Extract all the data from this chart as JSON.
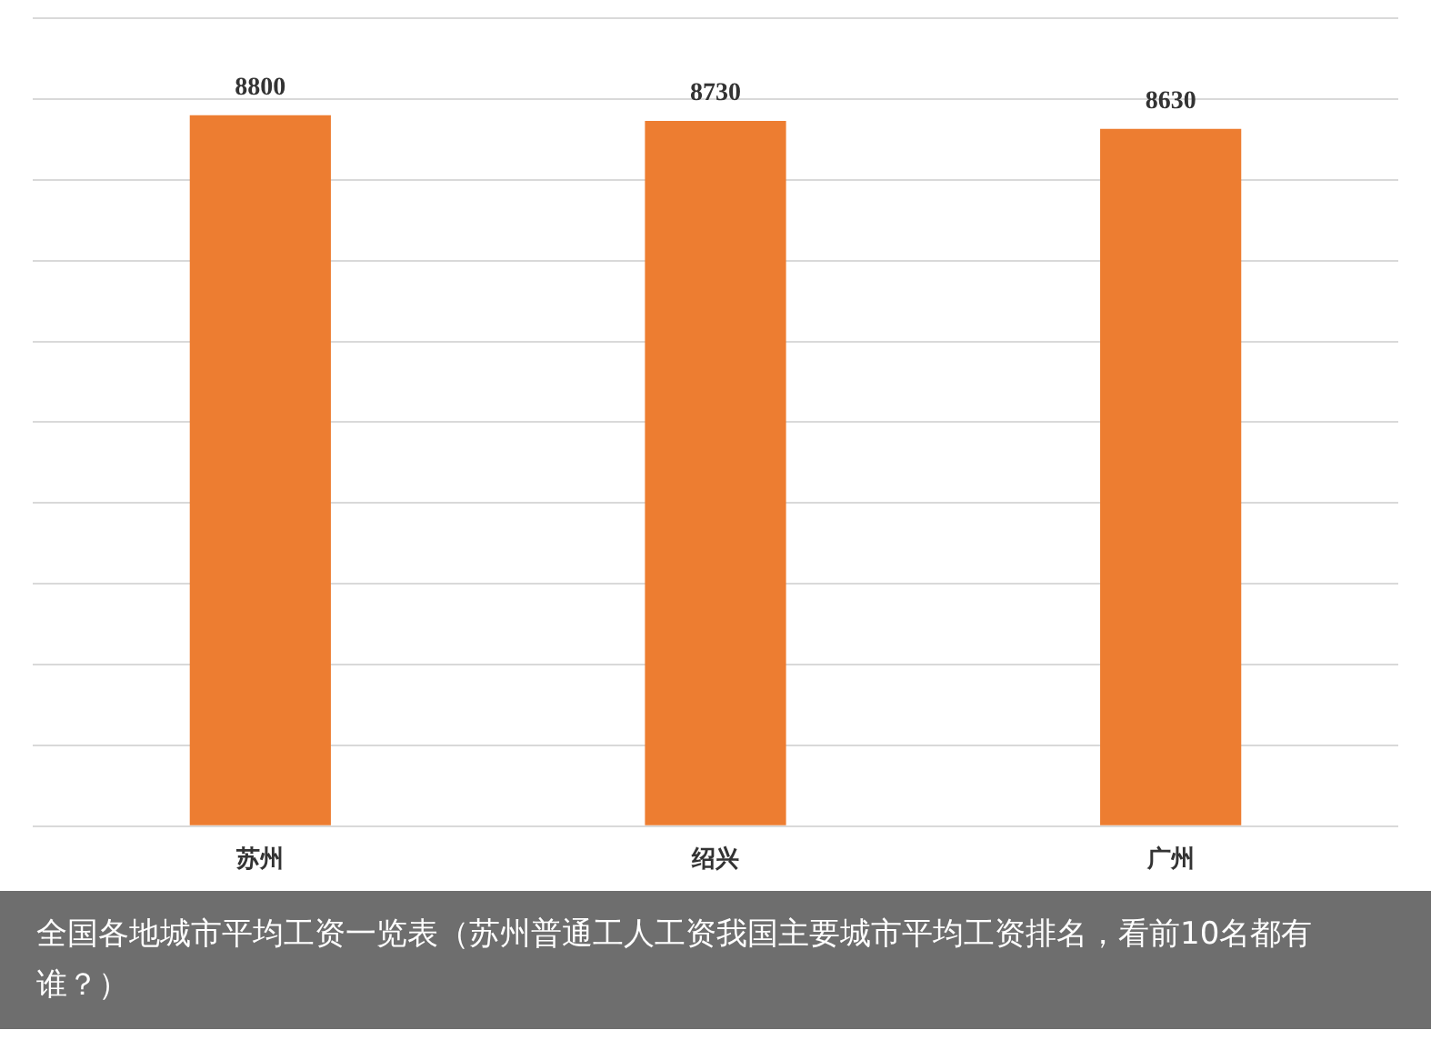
{
  "chart_data": {
    "type": "bar",
    "categories": [
      "苏州",
      "绍兴",
      "广州"
    ],
    "values": [
      8800,
      8730,
      8630
    ],
    "color": "#ed7d31",
    "data_labels": true,
    "ylim": [
      0,
      10000
    ],
    "yticks": [
      {
        "value": 0,
        "label": null
      },
      {
        "value": 1000,
        "label": null
      },
      {
        "value": 2000,
        "label": null
      },
      {
        "value": 3000,
        "label": null
      },
      {
        "value": 4000,
        "label": null
      },
      {
        "value": 5000,
        "label": null
      },
      {
        "value": 6000,
        "label": null
      },
      {
        "value": 7000,
        "label": null
      },
      {
        "value": 8000,
        "label": null
      },
      {
        "value": 9000,
        "label": null
      },
      {
        "value": 10000,
        "label": null
      }
    ],
    "grid": "y",
    "tick_labels": "x",
    "legend": false,
    "annotations": [
      "全国各地城市平均工资一览表（苏州普通工人工资我国主要城市平均工资排名，看前10名都有谁？）"
    ]
  }
}
